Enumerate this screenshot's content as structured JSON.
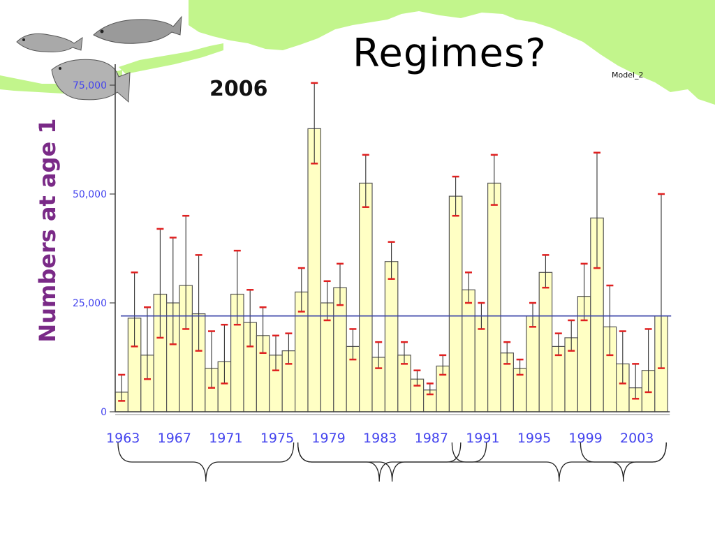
{
  "slide": {
    "title": "Regimes?",
    "model_label": "Model_2",
    "year_label": "2006"
  },
  "icons": [
    "cod-fish-icon",
    "pollock-fish-icon",
    "flatfish-icon"
  ],
  "colors": {
    "bar_fill": "#ffffc4",
    "bar_stroke": "#555555",
    "error_cap": "#e02020",
    "mean_line": "#3a43a8",
    "tick_text": "#4444ee",
    "ylabel": "#7a2a87",
    "map_land": "#c2f58c"
  },
  "chart_data": {
    "type": "bar",
    "ylabel": "Numbers at age 1",
    "ylim": [
      0,
      75000
    ],
    "yticks": [
      0,
      25000,
      50000,
      75000
    ],
    "ytick_labels": [
      "0",
      "25,000",
      "50,000",
      "75,000"
    ],
    "xtick_labels": [
      "1963",
      "1967",
      "1971",
      "1975",
      "1979",
      "1983",
      "1987",
      "1991",
      "1995",
      "1999",
      "2003"
    ],
    "mean_line": 22000,
    "categories": [
      1963,
      1964,
      1965,
      1966,
      1967,
      1968,
      1969,
      1970,
      1971,
      1972,
      1973,
      1974,
      1975,
      1976,
      1977,
      1978,
      1979,
      1980,
      1981,
      1982,
      1983,
      1984,
      1985,
      1986,
      1987,
      1988,
      1989,
      1990,
      1991,
      1992,
      1993,
      1994,
      1995,
      1996,
      1997,
      1998,
      1999,
      2000,
      2001,
      2002,
      2003,
      2004,
      2005
    ],
    "values": [
      4500,
      21500,
      13000,
      27000,
      25000,
      29000,
      22500,
      10000,
      11500,
      27000,
      20500,
      17500,
      13000,
      14000,
      27500,
      65000,
      25000,
      28500,
      15000,
      52500,
      12500,
      34500,
      13000,
      7500,
      5000,
      10500,
      49500,
      28000,
      22000,
      52500,
      13500,
      10000,
      22000,
      32000,
      15000,
      17000,
      26500,
      44500,
      19500,
      11000,
      5500,
      9500,
      22000
    ],
    "upper": [
      8500,
      32000,
      24000,
      42000,
      40000,
      45000,
      36000,
      18500,
      20000,
      37000,
      28000,
      24000,
      17500,
      18000,
      33000,
      75500,
      30000,
      34000,
      19000,
      59000,
      16000,
      39000,
      16000,
      9500,
      6500,
      13000,
      54000,
      32000,
      25000,
      59000,
      16000,
      12000,
      25000,
      36000,
      18000,
      21000,
      34000,
      59500,
      29000,
      18500,
      11000,
      19000,
      50000
    ],
    "lower": [
      2500,
      15000,
      7500,
      17000,
      15500,
      19000,
      14000,
      5500,
      6500,
      20000,
      15000,
      13500,
      9500,
      11000,
      23000,
      57000,
      21000,
      24500,
      12000,
      47000,
      10000,
      30500,
      11000,
      6000,
      4000,
      8500,
      45000,
      25000,
      19000,
      47500,
      11000,
      8500,
      19500,
      28500,
      13000,
      14000,
      21000,
      33000,
      13000,
      6500,
      3000,
      4500,
      10000
    ],
    "regime_braces": [
      {
        "from": 1963,
        "to": 1976
      },
      {
        "from": 1977,
        "to": 1989
      },
      {
        "from": 1977,
        "to": 1991
      },
      {
        "from": 1989,
        "to": 2005
      },
      {
        "from": 1999,
        "to": 2005
      }
    ]
  }
}
